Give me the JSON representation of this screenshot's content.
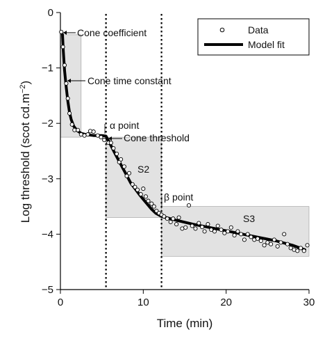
{
  "chart_data": {
    "type": "scatter",
    "xlabel": "Time (min)",
    "ylabel": "Log threshold (scot cd.m",
    "ylabel_sup": "−2",
    "ylabel_close": ")",
    "xlim": [
      0,
      30
    ],
    "ylim": [
      -5,
      0
    ],
    "x_ticks": [
      0,
      10,
      20,
      30
    ],
    "x_tick_labels": [
      "0",
      "10",
      "20",
      "30"
    ],
    "y_ticks": [
      0,
      -1,
      -2,
      -3,
      -4,
      -5
    ],
    "y_tick_labels": [
      "0",
      "−1",
      "−2",
      "−3",
      "−4",
      "−5"
    ],
    "grid": false,
    "legend": {
      "placement": "top-right",
      "entries": [
        {
          "label": "Data",
          "marker": "open-circle"
        },
        {
          "label": "Model fit",
          "marker": "thick-line"
        }
      ]
    },
    "colors": {
      "data": "#000000",
      "fit": "#000000",
      "shade": "#e2e2e2",
      "shade_stroke": "#9a9a9a"
    },
    "shaded_regions": [
      {
        "x": [
          0,
          2.5
        ],
        "y": [
          -2.25,
          -0.4
        ]
      },
      {
        "x": [
          5.5,
          12.2
        ],
        "y": [
          -3.7,
          -2.25
        ]
      },
      {
        "x": [
          12.2,
          30
        ],
        "y": [
          -4.4,
          -3.5
        ]
      }
    ],
    "vertical_lines": [
      5.5,
      12.2
    ],
    "annotations": [
      {
        "text": "Cone coefficient",
        "x": 0.2,
        "y": -0.4
      },
      {
        "text": "Cone time constant",
        "x": 0.8,
        "y": -1.25
      },
      {
        "text": "α point",
        "x": 5.6,
        "y": -2.05
      },
      {
        "text": "Cone threshold",
        "x": 5.6,
        "y": -2.28
      },
      {
        "text": "S2",
        "x": 9.5,
        "y": -2.8
      },
      {
        "text": "β point",
        "x": 12.3,
        "y": -3.33
      },
      {
        "text": "S3",
        "x": 22.5,
        "y": -3.72
      }
    ],
    "series": [
      {
        "name": "Model fit",
        "type": "line",
        "x": [
          0.25,
          0.35,
          0.5,
          0.7,
          0.9,
          1.1,
          1.3,
          1.6,
          2.0,
          2.5,
          3.0,
          3.5,
          4.0,
          4.5,
          5.0,
          5.5,
          6.0,
          6.5,
          7.0,
          7.5,
          8.0,
          8.5,
          9.0,
          9.5,
          10.0,
          10.5,
          11.0,
          11.5,
          12.2,
          13.0,
          14.0,
          16.0,
          18.0,
          20.0,
          22.0,
          24.0,
          26.0,
          28.0,
          29.5
        ],
        "y": [
          -0.4,
          -0.7,
          -1.05,
          -1.35,
          -1.6,
          -1.8,
          -1.93,
          -2.05,
          -2.13,
          -2.18,
          -2.2,
          -2.21,
          -2.22,
          -2.22,
          -2.22,
          -2.23,
          -2.37,
          -2.52,
          -2.66,
          -2.8,
          -2.94,
          -3.08,
          -3.18,
          -3.28,
          -3.37,
          -3.46,
          -3.55,
          -3.62,
          -3.68,
          -3.71,
          -3.75,
          -3.82,
          -3.88,
          -3.94,
          -4.0,
          -4.06,
          -4.12,
          -4.2,
          -4.28
        ]
      },
      {
        "name": "Data",
        "type": "scatter",
        "x": [
          0.1,
          0.3,
          0.5,
          0.7,
          0.9,
          1.1,
          1.4,
          1.7,
          2.1,
          2.5,
          2.9,
          3.3,
          3.6,
          4.0,
          4.5,
          4.9,
          5.3,
          5.8,
          6.1,
          6.4,
          6.8,
          7.1,
          7.3,
          7.7,
          8.0,
          8.3,
          8.7,
          9.0,
          9.3,
          9.7,
          10.0,
          10.3,
          10.6,
          11.0,
          11.3,
          11.6,
          11.9,
          12.2,
          12.5,
          12.9,
          13.3,
          13.6,
          14.0,
          14.3,
          14.7,
          15.1,
          15.5,
          15.9,
          16.3,
          16.7,
          17.1,
          17.4,
          17.8,
          18.2,
          18.6,
          19.0,
          19.4,
          19.8,
          20.2,
          20.6,
          21.0,
          21.4,
          21.8,
          22.2,
          22.6,
          23.0,
          23.4,
          23.8,
          24.2,
          24.6,
          25.0,
          25.4,
          25.8,
          26.2,
          26.6,
          27.0,
          27.4,
          27.8,
          28.2,
          28.6,
          29.0,
          29.4,
          29.8
        ],
        "y": [
          -0.35,
          -0.62,
          -0.95,
          -1.28,
          -1.55,
          -1.82,
          -2.02,
          -2.12,
          -2.12,
          -2.2,
          -2.22,
          -2.2,
          -2.14,
          -2.15,
          -2.22,
          -2.25,
          -2.3,
          -2.35,
          -2.35,
          -2.45,
          -2.55,
          -2.7,
          -2.65,
          -2.78,
          -2.95,
          -2.9,
          -3.1,
          -3.15,
          -3.2,
          -3.28,
          -3.18,
          -3.32,
          -3.4,
          -3.45,
          -3.5,
          -3.58,
          -3.62,
          -3.65,
          -3.68,
          -3.72,
          -3.78,
          -3.72,
          -3.82,
          -3.7,
          -3.9,
          -3.88,
          -3.48,
          -3.85,
          -3.9,
          -3.8,
          -3.87,
          -3.95,
          -3.82,
          -3.92,
          -3.95,
          -3.85,
          -3.92,
          -3.98,
          -3.95,
          -3.88,
          -4.02,
          -3.95,
          -4.0,
          -4.1,
          -4.0,
          -4.05,
          -4.1,
          -4.08,
          -4.12,
          -4.2,
          -4.15,
          -4.18,
          -4.1,
          -4.22,
          -4.15,
          -4.0,
          -4.18,
          -4.25,
          -4.28,
          -4.3,
          -4.25,
          -4.3,
          -4.2
        ]
      }
    ]
  }
}
